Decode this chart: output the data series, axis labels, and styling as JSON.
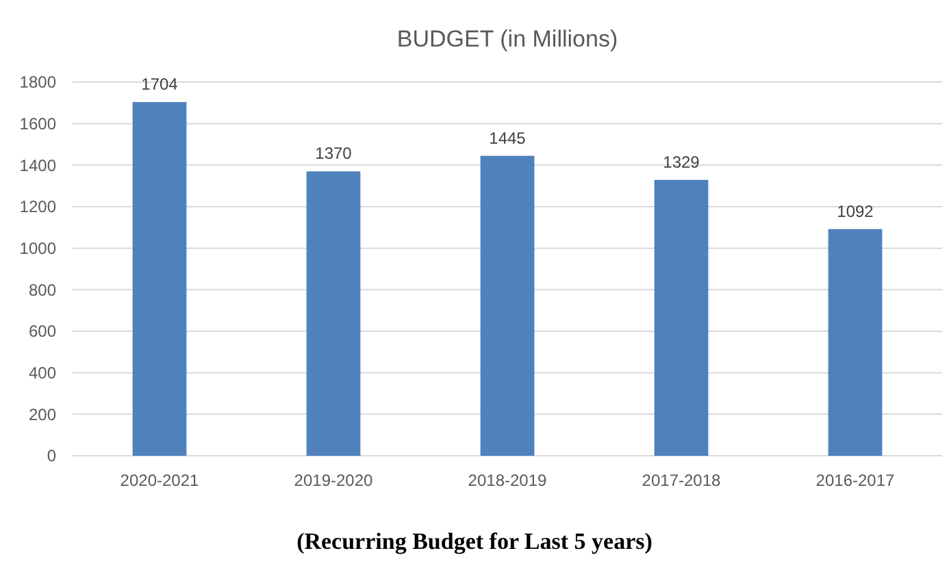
{
  "chart_data": {
    "type": "bar",
    "title": "BUDGET (in Millions)",
    "categories": [
      "2020-2021",
      "2019-2020",
      "2018-2019",
      "2017-2018",
      "2016-2017"
    ],
    "values": [
      1704,
      1370,
      1445,
      1329,
      1092
    ],
    "color": "#4f81bd",
    "ylim": [
      0,
      1800
    ],
    "yticks": [
      0,
      200,
      400,
      600,
      800,
      1000,
      1200,
      1400,
      1600,
      1800
    ],
    "grid": "y",
    "data_labels": true,
    "annotations": [
      "(Recurring Budget for Last 5 years)"
    ]
  }
}
